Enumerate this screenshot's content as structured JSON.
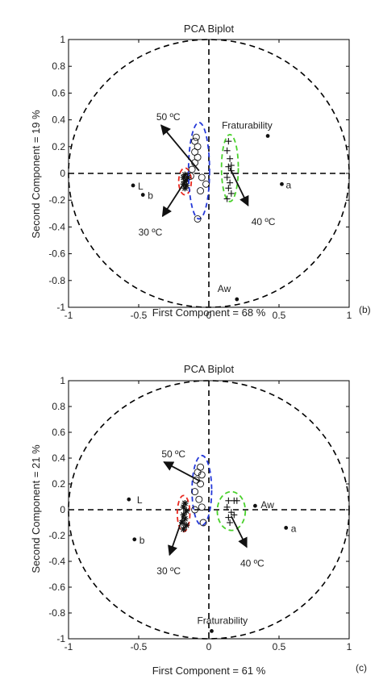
{
  "colors": {
    "axis": "#000000",
    "text": "#222222",
    "red": "#e8281f",
    "blue": "#2438d8",
    "green": "#49d12b",
    "marker": "#111111"
  },
  "chart_data": [
    {
      "type": "scatter",
      "panel_label": "(b)",
      "title": "PCA Biplot",
      "xlabel": "First Component = 68 %",
      "ylabel": "Second Component = 19 %",
      "xlim": [
        -1,
        1
      ],
      "ylim": [
        -1,
        1
      ],
      "xticks": [
        {
          "v": -1,
          "label": "-1"
        },
        {
          "v": -0.5,
          "label": "-0.5"
        },
        {
          "v": 0,
          "label": "0"
        },
        {
          "v": 0.5,
          "label": "0.5"
        },
        {
          "v": 1,
          "label": "1"
        }
      ],
      "yticks": [
        {
          "v": 1,
          "label": "1"
        },
        {
          "v": 0.8,
          "label": "0.8"
        },
        {
          "v": 0.6,
          "label": "0.6"
        },
        {
          "v": 0.4,
          "label": "0.4"
        },
        {
          "v": 0.2,
          "label": "0.2"
        },
        {
          "v": 0,
          "label": "0"
        },
        {
          "v": -0.2,
          "label": "-0.2"
        },
        {
          "v": -0.4,
          "label": "-0.4"
        },
        {
          "v": -0.6,
          "label": "-0.6"
        },
        {
          "v": -0.8,
          "label": "-0.8"
        },
        {
          "v": -1,
          "label": "-1"
        }
      ],
      "variables": [
        {
          "label": "Fraturability",
          "x": 0.42,
          "y": 0.28
        },
        {
          "label": "a",
          "x": 0.52,
          "y": -0.08
        },
        {
          "label": "L",
          "x": -0.54,
          "y": -0.09
        },
        {
          "label": "b",
          "x": -0.47,
          "y": -0.16
        },
        {
          "label": "Aw",
          "x": 0.2,
          "y": -0.94
        }
      ],
      "groups": [
        {
          "label": "30 ºC",
          "marker": "asterisk",
          "ellipse_color": "red",
          "ellipse": {
            "cx": -0.17,
            "cy": -0.06,
            "rx": 0.045,
            "ry": 0.1
          },
          "arrow": {
            "x1": -0.17,
            "y1": -0.06,
            "x2": -0.33,
            "y2": -0.32
          },
          "points": [
            [
              -0.17,
              -0.01
            ],
            [
              -0.18,
              -0.03
            ],
            [
              -0.16,
              -0.05
            ],
            [
              -0.17,
              -0.06
            ],
            [
              -0.18,
              -0.08
            ],
            [
              -0.16,
              -0.09
            ],
            [
              -0.17,
              -0.11
            ],
            [
              -0.15,
              -0.03
            ]
          ]
        },
        {
          "label": "50 ºC",
          "marker": "circle",
          "ellipse_color": "blue",
          "ellipse": {
            "cx": -0.07,
            "cy": 0.02,
            "rx": 0.075,
            "ry": 0.36
          },
          "arrow": {
            "x1": -0.07,
            "y1": 0.02,
            "x2": -0.34,
            "y2": 0.36
          },
          "points": [
            [
              -0.09,
              0.27
            ],
            [
              -0.1,
              0.24
            ],
            [
              -0.08,
              0.2
            ],
            [
              -0.1,
              0.16
            ],
            [
              -0.08,
              0.12
            ],
            [
              -0.1,
              0.08
            ],
            [
              -0.12,
              0.03
            ],
            [
              -0.05,
              -0.03
            ],
            [
              -0.02,
              -0.08
            ],
            [
              -0.06,
              -0.13
            ],
            [
              -0.08,
              -0.34
            ],
            [
              -0.13,
              -0.02
            ]
          ]
        },
        {
          "label": "40 ºC",
          "marker": "plus",
          "ellipse_color": "green",
          "ellipse": {
            "cx": 0.15,
            "cy": 0.04,
            "rx": 0.06,
            "ry": 0.25
          },
          "arrow": {
            "x1": 0.15,
            "y1": 0.04,
            "x2": 0.28,
            "y2": -0.24
          },
          "points": [
            [
              0.14,
              0.24
            ],
            [
              0.13,
              0.17
            ],
            [
              0.15,
              0.11
            ],
            [
              0.14,
              0.05
            ],
            [
              0.16,
              0.02
            ],
            [
              0.13,
              -0.03
            ],
            [
              0.15,
              -0.07
            ],
            [
              0.14,
              -0.11
            ],
            [
              0.16,
              -0.15
            ],
            [
              0.13,
              -0.19
            ],
            [
              0.16,
              0.06
            ]
          ]
        }
      ]
    },
    {
      "type": "scatter",
      "panel_label": "(c)",
      "title": "PCA Biplot",
      "xlabel": "First Component = 61 %",
      "ylabel": "Second Component = 21 %",
      "xlim": [
        -1,
        1
      ],
      "ylim": [
        -1,
        1
      ],
      "xticks": [
        {
          "v": -1,
          "label": "-1"
        },
        {
          "v": -0.5,
          "label": "-0.5"
        },
        {
          "v": 0,
          "label": "0"
        },
        {
          "v": 0.5,
          "label": "0.5"
        },
        {
          "v": 1,
          "label": "1"
        }
      ],
      "yticks": [
        {
          "v": 1,
          "label": "1"
        },
        {
          "v": 0.8,
          "label": "0.8"
        },
        {
          "v": 0.6,
          "label": "0.6"
        },
        {
          "v": 0.4,
          "label": "0.4"
        },
        {
          "v": 0.2,
          "label": "0.2"
        },
        {
          "v": 0,
          "label": "0"
        },
        {
          "v": -0.2,
          "label": "-0.2"
        },
        {
          "v": -0.4,
          "label": "-0.4"
        },
        {
          "v": -0.6,
          "label": "-0.6"
        },
        {
          "v": -0.8,
          "label": "-0.8"
        },
        {
          "v": -1,
          "label": "-1"
        }
      ],
      "variables": [
        {
          "label": "L",
          "x": -0.57,
          "y": 0.08
        },
        {
          "label": "Aw",
          "x": 0.33,
          "y": 0.03
        },
        {
          "label": "a",
          "x": 0.55,
          "y": -0.14
        },
        {
          "label": "b",
          "x": -0.53,
          "y": -0.23
        },
        {
          "label": "Fraturability",
          "x": 0.02,
          "y": -0.94
        }
      ],
      "groups": [
        {
          "label": "30 ºC",
          "marker": "asterisk",
          "ellipse_color": "red",
          "ellipse": {
            "cx": -0.18,
            "cy": -0.03,
            "rx": 0.045,
            "ry": 0.14
          },
          "arrow": {
            "x1": -0.18,
            "y1": -0.04,
            "x2": -0.28,
            "y2": -0.35
          },
          "points": [
            [
              -0.17,
              0.05
            ],
            [
              -0.18,
              0.02
            ],
            [
              -0.16,
              -0.01
            ],
            [
              -0.18,
              -0.04
            ],
            [
              -0.17,
              -0.07
            ],
            [
              -0.19,
              -0.1
            ],
            [
              -0.16,
              -0.12
            ],
            [
              -0.18,
              -0.15
            ]
          ]
        },
        {
          "label": "50 ºC",
          "marker": "circle",
          "ellipse_color": "blue",
          "ellipse": {
            "cx": -0.05,
            "cy": 0.15,
            "rx": 0.07,
            "ry": 0.27
          },
          "arrow": {
            "x1": -0.06,
            "y1": 0.22,
            "x2": -0.32,
            "y2": 0.37
          },
          "points": [
            [
              -0.06,
              0.33
            ],
            [
              -0.08,
              0.29
            ],
            [
              -0.05,
              0.27
            ],
            [
              -0.09,
              0.23
            ],
            [
              -0.06,
              0.2
            ],
            [
              -0.1,
              0.14
            ],
            [
              -0.07,
              0.08
            ],
            [
              -0.05,
              0.02
            ],
            [
              -0.1,
              0.0
            ],
            [
              -0.04,
              -0.1
            ]
          ]
        },
        {
          "label": "40 ºC",
          "marker": "plus",
          "ellipse_color": "green",
          "ellipse": {
            "cx": 0.16,
            "cy": -0.01,
            "rx": 0.1,
            "ry": 0.15
          },
          "arrow": {
            "x1": 0.16,
            "y1": -0.05,
            "x2": 0.27,
            "y2": -0.29
          },
          "points": [
            [
              0.14,
              0.07
            ],
            [
              0.18,
              0.07
            ],
            [
              0.2,
              0.07
            ],
            [
              0.13,
              0.02
            ],
            [
              0.16,
              -0.02
            ],
            [
              0.14,
              -0.06
            ],
            [
              0.15,
              -0.1
            ],
            [
              0.18,
              -0.04
            ]
          ]
        }
      ]
    }
  ]
}
